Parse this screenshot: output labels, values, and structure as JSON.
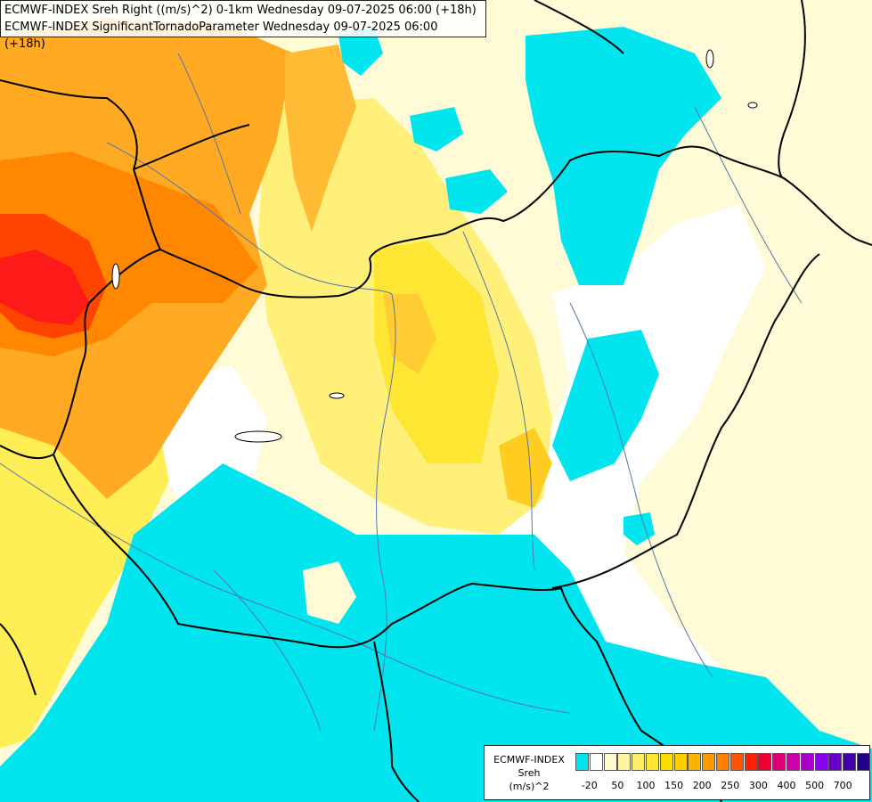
{
  "header": {
    "line1": "ECMWF-INDEX Sreh Right ((m/s)^2) 0-1km Wednesday 09-07-2025 06:00 (+18h)",
    "line2": "ECMWF-INDEX SignificantTornadoParameter Wednesday 09-07-2025 06:00 (+18h)"
  },
  "legend": {
    "title": "ECMWF-INDEX",
    "variable": "Sreh",
    "unit": "(m/s)^2",
    "colors": [
      "#00e5ee",
      "#ffffff",
      "#fffacd",
      "#fff5a0",
      "#ffee66",
      "#ffe633",
      "#ffdd00",
      "#ffcc00",
      "#ffb300",
      "#ff9900",
      "#ff7f00",
      "#ff5500",
      "#ff2200",
      "#ee0033",
      "#dd0077",
      "#cc00aa",
      "#aa00cc",
      "#8800ee",
      "#6600cc",
      "#4400aa",
      "#220088"
    ],
    "ticks": [
      "-20",
      "50",
      "100",
      "150",
      "200",
      "250",
      "300",
      "400",
      "500",
      "700"
    ]
  },
  "colors": {
    "cyan": "#00e5ee",
    "pale": "#fffacd",
    "yellow": "#ffee55",
    "gold": "#ffcc33",
    "orange": "#ff9922",
    "red": "#ff2020",
    "border": "#000000",
    "river": "#5577aa"
  }
}
